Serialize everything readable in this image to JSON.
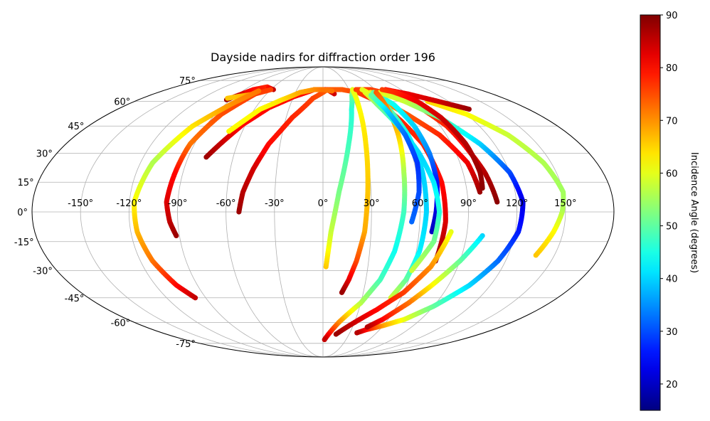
{
  "chart_data": {
    "type": "scatter",
    "projection": "mollweide",
    "title": "Dayside nadirs for diffraction order 196",
    "x_tick_labels": [
      "-150°",
      "-120°",
      "-90°",
      "-60°",
      "-30°",
      "0°",
      "30°",
      "60°",
      "90°",
      "120°",
      "150°"
    ],
    "x_tick_values": [
      -150,
      -120,
      -90,
      -60,
      -30,
      0,
      30,
      60,
      90,
      120,
      150
    ],
    "y_tick_labels": [
      "-75°",
      "-60°",
      "-45°",
      "-30°",
      "-15°",
      "0°",
      "15°",
      "30°",
      "45°",
      "60°",
      "75°"
    ],
    "y_tick_values": [
      -75,
      -60,
      -45,
      -30,
      -15,
      0,
      15,
      30,
      45,
      60,
      75
    ],
    "xlim": [
      -180,
      180
    ],
    "ylim": [
      -90,
      90
    ],
    "grid": true,
    "colorbar": {
      "label": "Incidence Angle (degrees)",
      "colormap": "jet",
      "range": [
        15,
        90
      ],
      "tick_values": [
        20,
        30,
        40,
        50,
        60,
        70,
        80,
        90
      ],
      "tick_labels": [
        "20",
        "30",
        "40",
        "50",
        "60",
        "70",
        "80",
        "90"
      ]
    },
    "series": [
      {
        "points": [
          [
            -94,
            61,
            88
          ],
          [
            -80,
            68,
            80
          ],
          [
            -68,
            70,
            78
          ],
          [
            -57,
            68,
            85
          ]
        ]
      },
      {
        "points": [
          [
            -95,
            62,
            66
          ],
          [
            -88,
            63,
            66
          ],
          [
            -80,
            64,
            68
          ],
          [
            -72,
            65,
            70
          ]
        ]
      },
      {
        "points": [
          [
            -60,
            68,
            76
          ],
          [
            -72,
            65,
            76
          ],
          [
            -85,
            52,
            75
          ],
          [
            -93,
            35,
            72
          ],
          [
            -95,
            20,
            80
          ],
          [
            -97,
            5,
            83
          ],
          [
            -95,
            -5,
            85
          ],
          [
            -92,
            -12,
            88
          ]
        ]
      },
      {
        "points": [
          [
            -78,
            28,
            88
          ],
          [
            -72,
            35,
            85
          ],
          [
            -62,
            46,
            80
          ],
          [
            -48,
            56,
            80
          ],
          [
            -30,
            63,
            80
          ],
          [
            -10,
            68,
            80
          ],
          [
            5,
            68,
            82
          ],
          [
            12,
            65,
            84
          ]
        ]
      },
      {
        "points": [
          [
            -52,
            0,
            88
          ],
          [
            -50,
            10,
            86
          ],
          [
            -45,
            22,
            84
          ],
          [
            -38,
            35,
            80
          ],
          [
            -25,
            50,
            78
          ],
          [
            -10,
            62,
            76
          ],
          [
            5,
            68,
            74
          ],
          [
            22,
            68,
            74
          ],
          [
            38,
            66,
            76
          ],
          [
            52,
            60,
            78
          ],
          [
            62,
            48,
            78
          ],
          [
            70,
            35,
            78
          ],
          [
            75,
            15,
            80
          ],
          [
            76,
            -5,
            83
          ],
          [
            74,
            -25,
            88
          ]
        ]
      },
      {
        "points": [
          [
            -72,
            67,
            72
          ],
          [
            -85,
            58,
            70
          ],
          [
            -100,
            45,
            64
          ],
          [
            -112,
            25,
            56
          ],
          [
            -117,
            5,
            62
          ],
          [
            -116,
            -10,
            67
          ],
          [
            -112,
            -25,
            72
          ],
          [
            -105,
            -38,
            80
          ],
          [
            -98,
            -45,
            85
          ]
        ]
      },
      {
        "points": [
          [
            -70,
            42,
            62
          ],
          [
            -55,
            55,
            62
          ],
          [
            -40,
            61,
            64
          ],
          [
            -25,
            66,
            68
          ],
          [
            -10,
            68,
            70
          ],
          [
            0,
            68,
            72
          ],
          [
            10,
            67,
            72
          ]
        ]
      },
      {
        "points": [
          [
            2,
            -28,
            66
          ],
          [
            5,
            -10,
            58
          ],
          [
            10,
            10,
            52
          ],
          [
            18,
            35,
            48
          ],
          [
            25,
            55,
            46
          ],
          [
            30,
            64,
            50
          ],
          [
            34,
            68,
            55
          ]
        ]
      },
      {
        "points": [
          [
            34,
            68,
            60
          ],
          [
            32,
            55,
            62
          ],
          [
            30,
            35,
            64
          ],
          [
            28,
            10,
            66
          ],
          [
            26,
            -10,
            68
          ],
          [
            22,
            -25,
            75
          ],
          [
            18,
            -35,
            82
          ],
          [
            14,
            -42,
            88
          ]
        ]
      },
      {
        "points": [
          [
            38,
            68,
            76
          ],
          [
            55,
            68,
            76
          ],
          [
            70,
            65,
            76
          ],
          [
            85,
            58,
            76
          ],
          [
            95,
            45,
            78
          ],
          [
            100,
            30,
            82
          ],
          [
            104,
            20,
            86
          ],
          [
            108,
            5,
            89
          ]
        ]
      },
      {
        "points": [
          [
            98,
            10,
            88
          ],
          [
            95,
            25,
            82
          ],
          [
            85,
            40,
            78
          ],
          [
            70,
            52,
            74
          ],
          [
            58,
            60,
            68
          ],
          [
            50,
            65,
            64
          ],
          [
            45,
            68,
            60
          ]
        ]
      },
      {
        "points": [
          [
            52,
            66,
            60
          ],
          [
            58,
            55,
            50
          ],
          [
            62,
            40,
            44
          ],
          [
            64,
            20,
            40
          ],
          [
            64,
            0,
            40
          ],
          [
            62,
            -20,
            42
          ],
          [
            58,
            -35,
            50
          ],
          [
            52,
            -45,
            58
          ]
        ]
      },
      {
        "points": [
          [
            55,
            66,
            50
          ],
          [
            65,
            58,
            44
          ],
          [
            70,
            45,
            40
          ],
          [
            72,
            30,
            34
          ],
          [
            72,
            15,
            26
          ],
          [
            70,
            0,
            22
          ],
          [
            68,
            -10,
            20
          ]
        ]
      },
      {
        "points": [
          [
            62,
            66,
            60
          ],
          [
            78,
            60,
            58
          ],
          [
            95,
            50,
            50
          ],
          [
            110,
            35,
            40
          ],
          [
            120,
            20,
            30
          ],
          [
            124,
            5,
            22
          ],
          [
            122,
            -10,
            26
          ],
          [
            115,
            -25,
            32
          ],
          [
            105,
            -38,
            40
          ],
          [
            90,
            -50,
            50
          ],
          [
            75,
            -58,
            60
          ],
          [
            60,
            -62,
            68
          ],
          [
            45,
            -65,
            80
          ],
          [
            38,
            -67,
            86
          ]
        ]
      },
      {
        "points": [
          [
            100,
            60,
            65
          ],
          [
            120,
            52,
            62
          ],
          [
            135,
            40,
            58
          ],
          [
            145,
            25,
            56
          ],
          [
            150,
            10,
            55
          ],
          [
            148,
            0,
            56
          ],
          [
            144,
            -10,
            62
          ],
          [
            138,
            -22,
            66
          ]
        ]
      },
      {
        "points": [
          [
            72,
            68,
            80
          ],
          [
            90,
            65,
            82
          ],
          [
            110,
            60,
            84
          ],
          [
            128,
            55,
            88
          ]
        ]
      },
      {
        "points": [
          [
            68,
            68,
            76
          ],
          [
            80,
            66,
            78
          ],
          [
            90,
            60,
            82
          ],
          [
            96,
            50,
            84
          ],
          [
            100,
            35,
            86
          ],
          [
            101,
            20,
            88
          ],
          [
            100,
            12,
            89
          ]
        ]
      },
      {
        "points": [
          [
            58,
            66,
            74
          ],
          [
            55,
            40,
            66
          ],
          [
            52,
            20,
            56
          ],
          [
            50,
            0,
            48
          ],
          [
            46,
            -20,
            44
          ],
          [
            40,
            -35,
            48
          ],
          [
            30,
            -48,
            56
          ],
          [
            15,
            -60,
            70
          ],
          [
            2,
            -72,
            85
          ]
        ]
      },
      {
        "points": [
          [
            80,
            -10,
            60
          ],
          [
            72,
            -28,
            70
          ],
          [
            60,
            -42,
            76
          ],
          [
            45,
            -52,
            80
          ],
          [
            30,
            -60,
            84
          ],
          [
            15,
            -68,
            88
          ]
        ]
      },
      {
        "points": [
          [
            100,
            -12,
            40
          ],
          [
            90,
            -25,
            50
          ],
          [
            78,
            -38,
            62
          ],
          [
            68,
            -48,
            72
          ],
          [
            55,
            -58,
            80
          ],
          [
            45,
            -63,
            86
          ]
        ]
      },
      {
        "points": [
          [
            60,
            -30,
            58
          ],
          [
            70,
            -15,
            52
          ],
          [
            72,
            0,
            46
          ],
          [
            70,
            15,
            42
          ],
          [
            65,
            30,
            40
          ],
          [
            58,
            45,
            44
          ],
          [
            50,
            58,
            52
          ],
          [
            46,
            66,
            60
          ]
        ]
      },
      {
        "points": [
          [
            55,
            -5,
            32
          ],
          [
            60,
            10,
            30
          ],
          [
            62,
            25,
            28
          ],
          [
            60,
            40,
            32
          ],
          [
            55,
            55,
            40
          ],
          [
            50,
            64,
            50
          ]
        ]
      }
    ]
  }
}
